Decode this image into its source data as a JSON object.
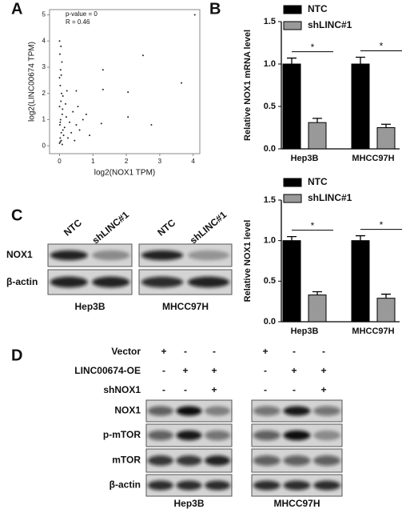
{
  "panel_labels": [
    "A",
    "B",
    "C",
    "D"
  ],
  "chart_data": [
    {
      "type": "scatter",
      "x_label": "log2(NOX1 TPM)",
      "y_label": "log2(LINC00674 TPM)",
      "annotations": [
        "p-value = 0",
        "R = 0.46"
      ],
      "x": [
        0.0,
        0.02,
        0.05,
        0.01,
        0.03,
        0.08,
        0.0,
        0.04,
        0.06,
        0.02,
        0.1,
        0.0,
        0.03,
        0.07,
        0.01,
        0.05,
        0.02,
        0.09,
        0.0,
        0.04,
        0.12,
        0.15,
        0.2,
        0.25,
        0.3,
        0.18,
        0.35,
        0.4,
        0.5,
        0.6,
        0.7,
        0.45,
        0.22,
        0.05,
        0.1,
        1.3,
        1.3,
        2.05,
        2.5,
        3.65,
        1.25,
        2.75,
        2.05,
        4.05,
        0.5,
        0.08,
        0.02,
        0.55,
        0.8,
        0.9
      ],
      "y": [
        0.1,
        0.3,
        0.5,
        0.8,
        1.0,
        1.2,
        1.5,
        1.7,
        2.0,
        2.3,
        0.6,
        2.6,
        2.9,
        3.2,
        3.5,
        0.2,
        0.9,
        1.4,
        4.0,
        3.8,
        0.4,
        0.7,
        1.1,
        0.3,
        0.9,
        1.6,
        0.5,
        1.3,
        0.8,
        0.6,
        1.0,
        0.2,
        2.1,
        2.7,
        1.9,
        2.9,
        2.15,
        2.05,
        3.45,
        2.4,
        0.85,
        0.8,
        1.1,
        5.0,
        2.1,
        0.05,
        0.15,
        1.5,
        1.2,
        0.4
      ],
      "color": "#222222",
      "xlim": [
        -0.3,
        4.2
      ],
      "xticks": [
        0,
        1,
        2,
        3,
        4
      ],
      "ylim": [
        -0.3,
        5.2
      ],
      "yticks": [
        0,
        1,
        2,
        3,
        4,
        5
      ]
    },
    {
      "type": "bar",
      "y_label": "Relative NOX1 mRNA level",
      "categories": [
        "Hep3B",
        "MHCC97H"
      ],
      "series": [
        {
          "name": "NTC",
          "color": "#000000",
          "values": [
            1.0,
            1.0
          ],
          "errors": [
            0.07,
            0.08
          ]
        },
        {
          "name": "shLINC#1",
          "color": "#999999",
          "values": [
            0.31,
            0.25
          ],
          "errors": [
            0.05,
            0.04
          ]
        }
      ],
      "annotations": [
        "*",
        "*"
      ],
      "ylim": [
        0,
        1.5
      ],
      "yticks": [
        {
          "value": 0,
          "label": "0.0"
        },
        {
          "value": 0.5,
          "label": "0.5"
        },
        {
          "value": 1,
          "label": "1.0"
        },
        {
          "value": 1.5,
          "label": "1.5"
        }
      ]
    },
    {
      "type": "bar",
      "y_label": "Relative NOX1 level",
      "categories": [
        "Hep3B",
        "MHCC97H"
      ],
      "series": [
        {
          "name": "NTC",
          "color": "#000000",
          "values": [
            1.0,
            1.0
          ],
          "errors": [
            0.05,
            0.06
          ]
        },
        {
          "name": "shLINC#1",
          "color": "#999999",
          "values": [
            0.33,
            0.29
          ],
          "errors": [
            0.04,
            0.05
          ]
        }
      ],
      "annotations": [
        "*",
        "*"
      ],
      "ylim": [
        0,
        1.5
      ],
      "yticks": [
        {
          "value": 0,
          "label": "0.0"
        },
        {
          "value": 0.5,
          "label": "0.5"
        },
        {
          "value": 1,
          "label": "1.0"
        },
        {
          "value": 1.5,
          "label": "1.5"
        }
      ]
    }
  ],
  "blot_c": {
    "lanes": [
      "NTC",
      "shLINC#1",
      "NTC",
      "shLINC#1"
    ],
    "rows": [
      "NOX1",
      "β-actin"
    ],
    "cell_lines": [
      "Hep3B",
      "MHCC97H"
    ]
  },
  "blot_d": {
    "treatments": [
      {
        "label": "Vector",
        "signs": [
          "+",
          "-",
          "-",
          "+",
          "-",
          "-"
        ]
      },
      {
        "label": "LINC00674-OE",
        "signs": [
          "-",
          "+",
          "+",
          "-",
          "+",
          "+"
        ]
      },
      {
        "label": "shNOX1",
        "signs": [
          "-",
          "-",
          "+",
          "-",
          "-",
          "+"
        ]
      }
    ],
    "rows": [
      "NOX1",
      "p-mTOR",
      "mTOR",
      "β-actin"
    ],
    "cell_lines": [
      "Hep3B",
      "MHCC97H"
    ]
  }
}
